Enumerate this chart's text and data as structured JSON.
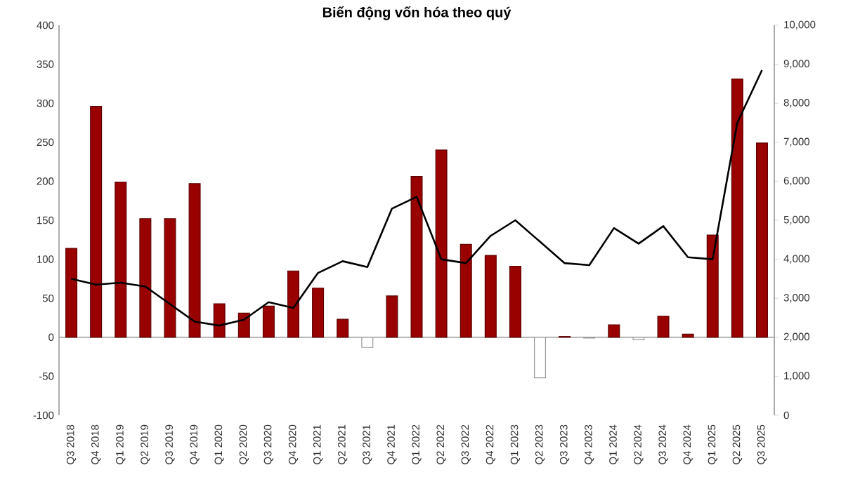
{
  "chart_data": {
    "type": "bar",
    "title": "Biến động vốn hóa theo quý",
    "categories": [
      "Q3 2018",
      "Q4 2018",
      "Q1 2019",
      "Q2 2019",
      "Q3 2019",
      "Q4 2019",
      "Q1 2020",
      "Q2 2020",
      "Q3 2020",
      "Q4 2020",
      "Q1 2021",
      "Q2 2021",
      "Q3 2021",
      "Q4 2021",
      "Q1 2022",
      "Q2 2022",
      "Q3 2022",
      "Q4 2022",
      "Q1 2023",
      "Q2 2023",
      "Q3 2023",
      "Q4 2023",
      "Q1 2024",
      "Q2 2024",
      "Q3 2024",
      "Q4 2024",
      "Q1 2025",
      "Q2 2025",
      "Q3 2025"
    ],
    "series": [
      {
        "values": [
          114,
          296,
          199,
          152,
          152,
          197,
          43,
          31,
          40,
          85,
          63,
          23,
          -13,
          53,
          206,
          240,
          119,
          105,
          91,
          -52,
          1,
          -1,
          16,
          -3,
          27,
          4,
          131,
          331,
          249
        ],
        "colors": [
          "#990000",
          "#990000",
          "#990000",
          "#990000",
          "#990000",
          "#990000",
          "#990000",
          "#990000",
          "#990000",
          "#990000",
          "#990000",
          "#990000",
          "#ffffff",
          "#990000",
          "#990000",
          "#990000",
          "#990000",
          "#990000",
          "#990000",
          "#ffffff",
          "#990000",
          "#ffffff",
          "#990000",
          "#ffffff",
          "#990000",
          "#990000",
          "#990000",
          "#990000",
          "#990000"
        ]
      },
      {
        "type": "line",
        "axis": "y2",
        "color": "#000000",
        "values": [
          3500,
          3350,
          3400,
          3300,
          2850,
          2400,
          2300,
          2450,
          2900,
          2750,
          3650,
          3950,
          3800,
          5300,
          5600,
          4000,
          3900,
          4600,
          5000,
          4450,
          3900,
          3850,
          4800,
          4400,
          4850,
          4050,
          4000,
          7500,
          8850
        ]
      }
    ],
    "ylim": [
      -100,
      400
    ],
    "yticks": [
      -100,
      -50,
      0,
      50,
      100,
      150,
      200,
      250,
      300,
      350,
      400
    ],
    "y2lim": [
      0,
      10000
    ],
    "y2ticks": [
      0,
      {
        "value": 1000,
        "label": "1,000"
      },
      {
        "value": 2000,
        "label": "2,000"
      },
      {
        "value": 3000,
        "label": "3,000"
      },
      {
        "value": 4000,
        "label": "4,000"
      },
      {
        "value": 5000,
        "label": "5,000"
      },
      {
        "value": 6000,
        "label": "6,000"
      },
      {
        "value": 7000,
        "label": "7,000"
      },
      {
        "value": 8000,
        "label": "8,000"
      },
      {
        "value": 9000,
        "label": "9,000"
      },
      {
        "value": 10000,
        "label": "10,000"
      }
    ],
    "legend": false,
    "marker": "none",
    "line_style": "solid"
  }
}
